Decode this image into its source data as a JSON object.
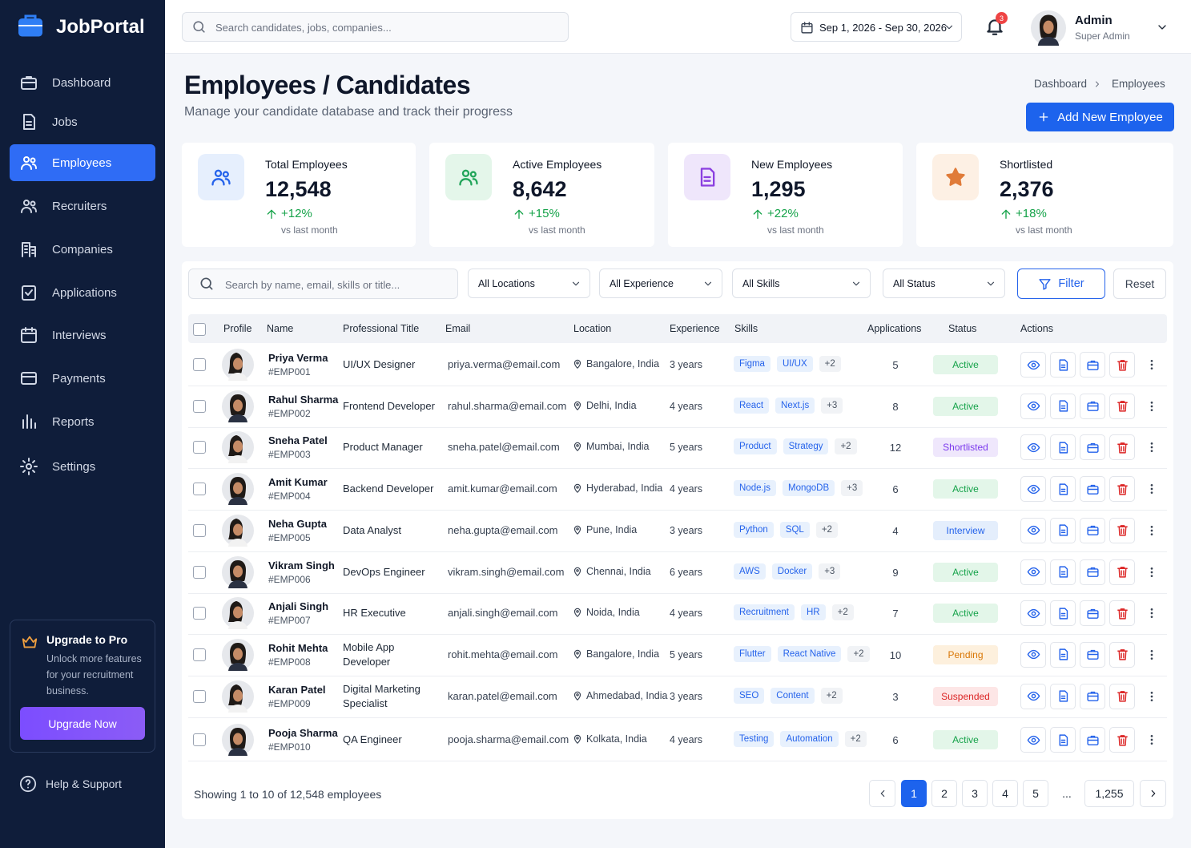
{
  "brand": "JobPortal",
  "nav": [
    "Dashboard",
    "Jobs",
    "Employees",
    "Recruiters",
    "Companies",
    "Applications",
    "Interviews",
    "Payments",
    "Reports",
    "Settings"
  ],
  "upgrade": {
    "title": "Upgrade to Pro",
    "text": "Unlock more features for your recruitment business.",
    "button": "Upgrade Now"
  },
  "help": "Help & Support",
  "topbar": {
    "search": "Search candidates, jobs, companies...",
    "date_range": "Sep 1, 2026 - Sep 30, 2026",
    "notifications": "3",
    "user": "Admin",
    "role": "Super Admin"
  },
  "header": {
    "title": "Employees / Candidates",
    "subtitle": "Manage your candidate database and track their progress",
    "breadcrumb": [
      "Dashboard",
      "Employees"
    ],
    "button": "Add New Employee"
  },
  "stats": [
    {
      "label": "Total Employees",
      "value": "12,548",
      "change": "+12%",
      "note": "vs last month",
      "color": "#2563eb",
      "bg": "#e6effd"
    },
    {
      "label": "Active Employees",
      "value": "8,642",
      "change": "+15%",
      "note": "vs last month",
      "color": "#22a55a",
      "bg": "#e4f6ea"
    },
    {
      "label": "New Employees",
      "value": "1,295",
      "change": "+22%",
      "note": "vs last month",
      "color": "#8b3fe0",
      "bg": "#efe6fb"
    },
    {
      "label": "Shortlisted",
      "value": "2,376",
      "change": "+18%",
      "note": "vs last month",
      "color": "#e07b39",
      "bg": "#fdf0e4"
    }
  ],
  "filters": {
    "search": "Search by name, email, skills or title...",
    "dropdowns": [
      "All Locations",
      "All Experience",
      "All Skills",
      "All Status"
    ],
    "filter": "Filter",
    "reset": "Reset"
  },
  "table": {
    "columns": [
      "Profile",
      "Name",
      "Professional Title",
      "Email",
      "Location",
      "Experience",
      "Skills",
      "Applications",
      "Status",
      "Actions"
    ],
    "rows": [
      {
        "name": "Priya Verma",
        "id": "#EMP001",
        "title": "UI/UX Designer",
        "email": "priya.verma@email.com",
        "location": "Bangalore, India",
        "experience": "3 years",
        "skills": [
          "Figma",
          "UI/UX"
        ],
        "more": "+2",
        "applications": "5",
        "status": "Active",
        "status_color": "#16a34a",
        "status_bg": "#e3f6e9"
      },
      {
        "name": "Rahul Sharma",
        "id": "#EMP002",
        "title": "Frontend Developer",
        "email": "rahul.sharma@email.com",
        "location": "Delhi, India",
        "experience": "4 years",
        "skills": [
          "React",
          "Next.js"
        ],
        "more": "+3",
        "applications": "8",
        "status": "Active",
        "status_color": "#16a34a",
        "status_bg": "#e3f6e9"
      },
      {
        "name": "Sneha Patel",
        "id": "#EMP003",
        "title": "Product Manager",
        "email": "sneha.patel@email.com",
        "location": "Mumbai, India",
        "experience": "5 years",
        "skills": [
          "Product",
          "Strategy"
        ],
        "more": "+2",
        "applications": "12",
        "status": "Shortlisted",
        "status_color": "#7c3aed",
        "status_bg": "#efe7fc"
      },
      {
        "name": "Amit Kumar",
        "id": "#EMP004",
        "title": "Backend Developer",
        "email": "amit.kumar@email.com",
        "location": "Hyderabad, India",
        "experience": "4 years",
        "skills": [
          "Node.js",
          "MongoDB"
        ],
        "more": "+3",
        "applications": "6",
        "status": "Active",
        "status_color": "#16a34a",
        "status_bg": "#e3f6e9"
      },
      {
        "name": "Neha Gupta",
        "id": "#EMP005",
        "title": "Data Analyst",
        "email": "neha.gupta@email.com",
        "location": "Pune, India",
        "experience": "3 years",
        "skills": [
          "Python",
          "SQL"
        ],
        "more": "+2",
        "applications": "4",
        "status": "Interview",
        "status_color": "#2563eb",
        "status_bg": "#e4eefc"
      },
      {
        "name": "Vikram Singh",
        "id": "#EMP006",
        "title": "DevOps Engineer",
        "email": "vikram.singh@email.com",
        "location": "Chennai, India",
        "experience": "6 years",
        "skills": [
          "AWS",
          "Docker"
        ],
        "more": "+3",
        "applications": "9",
        "status": "Active",
        "status_color": "#16a34a",
        "status_bg": "#e3f6e9"
      },
      {
        "name": "Anjali Singh",
        "id": "#EMP007",
        "title": "HR Executive",
        "email": "anjali.singh@email.com",
        "location": "Noida, India",
        "experience": "4 years",
        "skills": [
          "Recruitment",
          "HR"
        ],
        "more": "+2",
        "applications": "7",
        "status": "Active",
        "status_color": "#16a34a",
        "status_bg": "#e3f6e9"
      },
      {
        "name": "Rohit Mehta",
        "id": "#EMP008",
        "title": "Mobile App Developer",
        "email": "rohit.mehta@email.com",
        "location": "Bangalore, India",
        "experience": "5 years",
        "skills": [
          "Flutter",
          "React Native"
        ],
        "more": "+2",
        "applications": "10",
        "status": "Pending",
        "status_color": "#d97706",
        "status_bg": "#fdf0dd"
      },
      {
        "name": "Karan Patel",
        "id": "#EMP009",
        "title": "Digital Marketing Specialist",
        "email": "karan.patel@email.com",
        "location": "Ahmedabad, India",
        "experience": "3 years",
        "skills": [
          "SEO",
          "Content"
        ],
        "more": "+2",
        "applications": "3",
        "status": "Suspended",
        "status_color": "#dc2626",
        "status_bg": "#fde6e6"
      },
      {
        "name": "Pooja Sharma",
        "id": "#EMP010",
        "title": "QA Engineer",
        "email": "pooja.sharma@email.com",
        "location": "Kolkata, India",
        "experience": "4 years",
        "skills": [
          "Testing",
          "Automation"
        ],
        "more": "+2",
        "applications": "6",
        "status": "Active",
        "status_color": "#16a34a",
        "status_bg": "#e3f6e9"
      }
    ]
  },
  "pagination": {
    "summary": "Showing 1 to 10 of 12,548 employees",
    "pages": [
      "1",
      "2",
      "3",
      "4",
      "5",
      "...",
      "1,255"
    ]
  }
}
